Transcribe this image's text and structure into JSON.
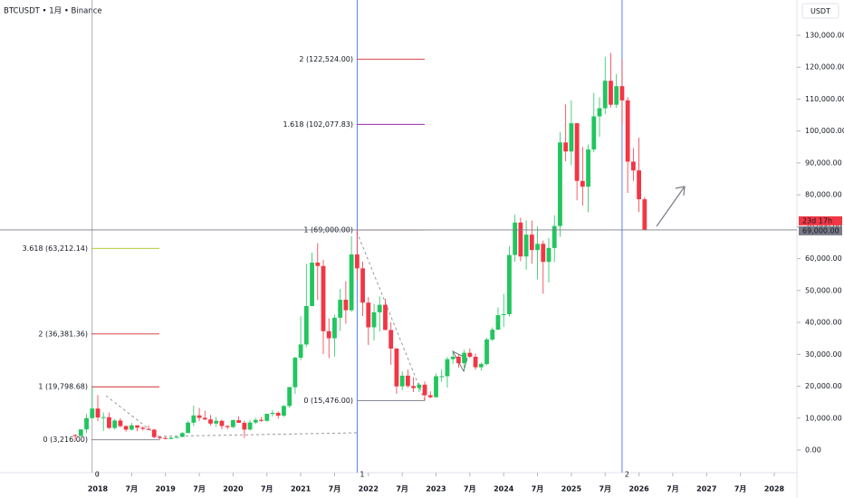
{
  "chart_data": {
    "type": "candlestick",
    "title": "BTCUSDT • 1月 • Binance",
    "currency": "USDT",
    "up_color": "#22c55e",
    "down_color": "#f23645",
    "x": [
      "2017-09",
      "2017-10",
      "2017-11",
      "2017-12",
      "2018-01",
      "2018-02",
      "2018-03",
      "2018-04",
      "2018-05",
      "2018-06",
      "2018-07",
      "2018-08",
      "2018-09",
      "2018-10",
      "2018-11",
      "2018-12",
      "2019-01",
      "2019-02",
      "2019-03",
      "2019-04",
      "2019-05",
      "2019-06",
      "2019-07",
      "2019-08",
      "2019-09",
      "2019-10",
      "2019-11",
      "2019-12",
      "2020-01",
      "2020-02",
      "2020-03",
      "2020-04",
      "2020-05",
      "2020-06",
      "2020-07",
      "2020-08",
      "2020-09",
      "2020-10",
      "2020-11",
      "2020-12",
      "2021-01",
      "2021-02",
      "2021-03",
      "2021-04",
      "2021-05",
      "2021-06",
      "2021-07",
      "2021-08",
      "2021-09",
      "2021-10",
      "2021-11",
      "2021-12",
      "2022-01",
      "2022-02",
      "2022-03",
      "2022-04",
      "2022-05",
      "2022-06",
      "2022-07",
      "2022-08",
      "2022-09",
      "2022-10",
      "2022-11",
      "2022-12",
      "2023-01",
      "2023-02",
      "2023-03",
      "2023-04",
      "2023-05",
      "2023-06",
      "2023-07",
      "2023-08",
      "2023-09",
      "2023-10",
      "2023-11",
      "2023-12",
      "2024-01",
      "2024-02",
      "2024-03",
      "2024-04",
      "2024-05",
      "2024-06",
      "2024-07",
      "2024-08",
      "2024-09",
      "2024-10",
      "2024-11",
      "2024-12",
      "2025-01",
      "2025-02",
      "2025-03",
      "2025-04",
      "2025-05",
      "2025-06",
      "2025-07",
      "2025-08",
      "2025-09",
      "2025-10",
      "2025-11",
      "2025-12",
      "2026-01",
      "2026-02"
    ],
    "open": [
      4690,
      4378,
      6463,
      10000,
      13000,
      10200,
      10300,
      6920,
      9240,
      7500,
      6400,
      7730,
      7000,
      6630,
      6370,
      4040,
      3740,
      3460,
      3810,
      4100,
      5320,
      8570,
      10850,
      10080,
      9590,
      8290,
      9150,
      7540,
      7195,
      9350,
      8520,
      6410,
      8620,
      9450,
      9140,
      11330,
      11650,
      10775,
      13800,
      19700,
      28920,
      33090,
      45140,
      58740,
      57690,
      37250,
      35040,
      41460,
      47100,
      43820,
      61300,
      56950,
      46200,
      38470,
      43160,
      45510,
      37630,
      31800,
      19940,
      23300,
      20050,
      19420,
      20490,
      17160,
      16540,
      23125,
      23140,
      28480,
      29230,
      27210,
      30470,
      29230,
      25940,
      26960,
      34640,
      37720,
      42280,
      42580,
      61130,
      71290,
      60670,
      67520,
      62680,
      64630,
      58970,
      63330,
      70220,
      96410,
      93580,
      102430,
      84350,
      82550,
      94210,
      104590,
      107140,
      115760,
      108240,
      114050,
      109600,
      90400,
      87650,
      78600
    ],
    "high": [
      4939,
      6470,
      11300,
      19798.68,
      17200,
      11800,
      11700,
      9760,
      10020,
      7760,
      8500,
      7760,
      7410,
      7680,
      6590,
      4400,
      4140,
      4200,
      4140,
      5600,
      9080,
      13970,
      13200,
      12330,
      10950,
      10370,
      9500,
      7750,
      9580,
      10500,
      9190,
      9470,
      10070,
      10380,
      11450,
      12470,
      12070,
      14100,
      19860,
      29300,
      41950,
      58350,
      61840,
      64850,
      59600,
      41300,
      42450,
      50500,
      52920,
      67000,
      69000,
      59050,
      47990,
      45820,
      48190,
      47440,
      40020,
      31980,
      24670,
      25210,
      22800,
      21090,
      21480,
      18390,
      23960,
      25250,
      29180,
      31000,
      29820,
      31430,
      31800,
      30230,
      27480,
      35200,
      38450,
      44700,
      48970,
      64000,
      73780,
      72800,
      71980,
      71950,
      70080,
      65660,
      66500,
      73620,
      99590,
      108350,
      109590,
      102500,
      95000,
      95760,
      111980,
      110530,
      123220,
      124470,
      117900,
      122524,
      110600,
      94600,
      97900,
      79300
    ],
    "low": [
      2817,
      4110,
      5325,
      9950,
      9035,
      6000,
      6600,
      6430,
      7090,
      5750,
      6070,
      5880,
      6100,
      6200,
      3650,
      3216,
      3350,
      3400,
      3680,
      4050,
      5350,
      7450,
      9070,
      9320,
      7710,
      7300,
      6515,
      6430,
      6870,
      8450,
      3780,
      6150,
      8100,
      8830,
      8890,
      10520,
      9825,
      10370,
      13190,
      17570,
      28130,
      32300,
      45000,
      47000,
      30000,
      28800,
      29280,
      37330,
      39600,
      43280,
      53250,
      42000,
      32920,
      34320,
      37150,
      37580,
      26700,
      17620,
      18780,
      19520,
      18150,
      18190,
      15476,
      16260,
      16500,
      21350,
      19550,
      26940,
      25810,
      24800,
      28860,
      25170,
      24900,
      26550,
      34100,
      37620,
      38550,
      41880,
      59000,
      59190,
      56550,
      58400,
      53500,
      49000,
      52550,
      58900,
      66830,
      90500,
      89260,
      78260,
      76600,
      74500,
      93350,
      98200,
      105270,
      107350,
      107270,
      102000,
      80600,
      84400,
      74600,
      69000
    ],
    "close": [
      4378,
      6463,
      10000,
      13000,
      10200,
      10300,
      6920,
      9240,
      7500,
      6400,
      7730,
      7000,
      6630,
      6370,
      4040,
      3740,
      3460,
      3810,
      4100,
      5320,
      8570,
      10850,
      10080,
      9590,
      8290,
      9150,
      7540,
      7195,
      9350,
      8520,
      6410,
      8620,
      9450,
      9140,
      11330,
      11650,
      10775,
      13800,
      19700,
      28920,
      33090,
      45140,
      58740,
      57690,
      37250,
      35040,
      41460,
      47100,
      43820,
      61300,
      56950,
      46200,
      38470,
      43160,
      45510,
      37630,
      31800,
      19940,
      23300,
      20050,
      19420,
      20490,
      17160,
      16540,
      23125,
      23140,
      28480,
      29230,
      27210,
      30470,
      29230,
      25940,
      26960,
      34640,
      37720,
      42280,
      42580,
      61130,
      71290,
      60670,
      67520,
      62680,
      64630,
      58970,
      63330,
      70220,
      96410,
      93580,
      102430,
      84350,
      82550,
      94210,
      104590,
      107140,
      115760,
      108240,
      114050,
      109600,
      90400,
      87650,
      78600,
      69000
    ],
    "ylim": [
      -6530,
      141070
    ],
    "yticks": [
      {
        "value": 0,
        "label": "0.00"
      },
      {
        "value": 10000,
        "label": "10,000.00"
      },
      {
        "value": 20000,
        "label": "20,000.00"
      },
      {
        "value": 30000,
        "label": "30,000.00"
      },
      {
        "value": 40000,
        "label": "40,000.00"
      },
      {
        "value": 50000,
        "label": "50,000.00"
      },
      {
        "value": 60000,
        "label": "60,000.00"
      },
      {
        "value": 70000,
        "label": "70,000.00"
      },
      {
        "value": 80000,
        "label": "80,000.00"
      },
      {
        "value": 90000,
        "label": "90,000.00"
      },
      {
        "value": 100000,
        "label": "100,000.00"
      },
      {
        "value": 110000,
        "label": "110,000.00"
      },
      {
        "value": 120000,
        "label": "120,000.00"
      },
      {
        "value": 130000,
        "label": "130,000.00"
      }
    ],
    "xticks": [
      {
        "value": "2018-01",
        "label": "2018"
      },
      {
        "value": "2018-07",
        "label": "7月"
      },
      {
        "value": "2019-01",
        "label": "2019"
      },
      {
        "value": "2019-07",
        "label": "7月"
      },
      {
        "value": "2020-01",
        "label": "2020"
      },
      {
        "value": "2020-07",
        "label": "7月"
      },
      {
        "value": "2021-01",
        "label": "2021"
      },
      {
        "value": "2021-07",
        "label": "7月"
      },
      {
        "value": "2022-01",
        "label": "2022"
      },
      {
        "value": "2022-07",
        "label": "7月"
      },
      {
        "value": "2023-01",
        "label": "2023"
      },
      {
        "value": "2023-07",
        "label": "7月"
      },
      {
        "value": "2024-01",
        "label": "2024"
      },
      {
        "value": "2024-07",
        "label": "7月"
      },
      {
        "value": "2025-01",
        "label": "2025"
      },
      {
        "value": "2025-07",
        "label": "7月"
      },
      {
        "value": "2026-01",
        "label": "2026"
      },
      {
        "value": "2026-07",
        "label": "7月"
      },
      {
        "value": "2027-01",
        "label": "2027"
      },
      {
        "value": "2027-07",
        "label": "7月"
      },
      {
        "value": "2028-01",
        "label": "2028"
      }
    ],
    "fib_sets": [
      {
        "levels": [
          {
            "value": 63212.14,
            "label": "3.618 (63,212.14)",
            "color": "#a8c41c"
          },
          {
            "value": 36381.36,
            "label": "2 (36,381.36)",
            "color": "#d32f2f"
          },
          {
            "value": 19798.68,
            "label": "1 (19,798.68)",
            "color": "#d32f2f"
          },
          {
            "value": 3216,
            "label": "0 (3,216.00)",
            "color": "#787b86"
          }
        ]
      },
      {
        "levels": [
          {
            "value": 122524,
            "label": "2 (122,524.00)",
            "color": "#d32f2f"
          },
          {
            "value": 102077.83,
            "label": "1.618 (102,077.83)",
            "color": "#9c27b0"
          },
          {
            "value": 69000,
            "label": "1 (69,000.00)",
            "color": "#d32f2f"
          },
          {
            "value": 15476,
            "label": "0 (15,476.00)",
            "color": "#787b86"
          }
        ]
      }
    ],
    "cycle_markers": [
      {
        "x": "2017-12",
        "label": "0",
        "color": "#9598a1"
      },
      {
        "x": "2021-11",
        "label": "1",
        "color": "#2962ff"
      },
      {
        "x": "2025-10",
        "label": "2",
        "color": "#2962ff"
      }
    ],
    "last_price": {
      "value": 69000,
      "label": "69,000.00",
      "countdown": "23d 17h"
    }
  }
}
